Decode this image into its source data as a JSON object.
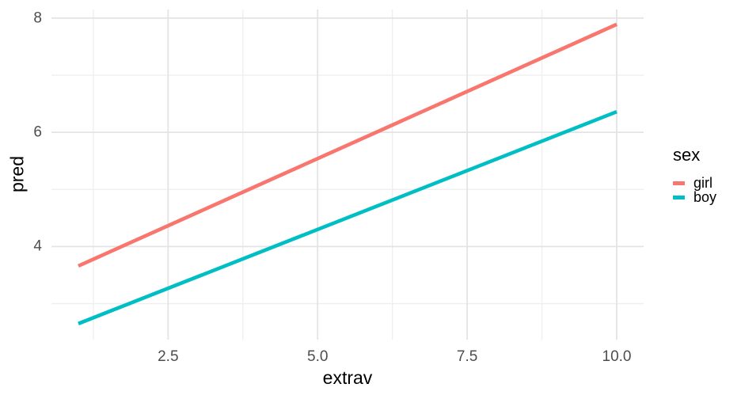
{
  "chart_data": {
    "type": "line",
    "title": "",
    "xlabel": "extrav",
    "ylabel": "pred",
    "xlim": [
      0.55,
      10.45
    ],
    "ylim": [
      2.37,
      8.15
    ],
    "x_major_ticks": [
      {
        "value": 2.5,
        "label": "2.5"
      },
      {
        "value": 5.0,
        "label": "5.0"
      },
      {
        "value": 7.5,
        "label": "7.5"
      },
      {
        "value": 10.0,
        "label": "10.0"
      }
    ],
    "x_minor_ticks": [
      1.25,
      3.75,
      6.25,
      8.75
    ],
    "y_major_ticks": [
      {
        "value": 4,
        "label": "4"
      },
      {
        "value": 6,
        "label": "6"
      },
      {
        "value": 8,
        "label": "8"
      }
    ],
    "y_minor_ticks": [
      3,
      5,
      7
    ],
    "series": [
      {
        "name": "girl",
        "color": "#F8766D",
        "points": [
          [
            1,
            3.66
          ],
          [
            10,
            7.89
          ]
        ]
      },
      {
        "name": "boy",
        "color": "#00BFC4",
        "points": [
          [
            1,
            2.65
          ],
          [
            10,
            6.36
          ]
        ]
      }
    ],
    "legend": {
      "title": "sex",
      "position": "right"
    },
    "grid": {
      "major_color": "#E4E4E4",
      "minor_color": "#EEEEEE",
      "grid_on": true
    },
    "background": "#FFFFFF",
    "tick_label_color": "#4D4D4D",
    "axis_title_color": "#000000",
    "line_width": 4.6
  }
}
